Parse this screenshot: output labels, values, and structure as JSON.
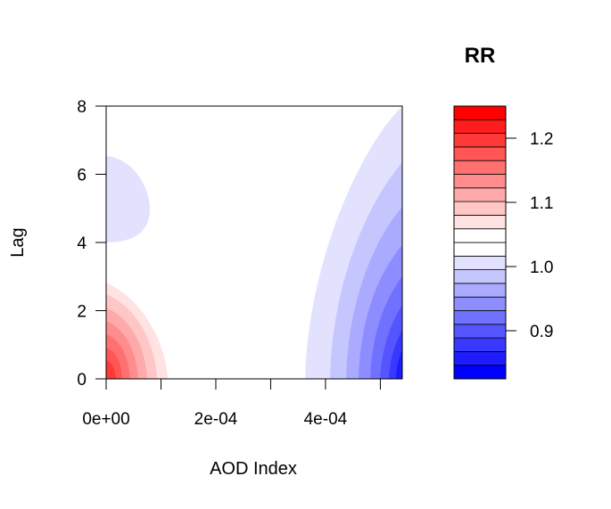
{
  "chart_data": {
    "type": "heatmap",
    "xlabel": "AOD Index",
    "ylabel": "Lag",
    "xlim": [
      0,
      0.00054
    ],
    "ylim": [
      0,
      8
    ],
    "x_ticks": [
      0,
      0.0001,
      0.0002,
      0.0003,
      0.0004,
      0.0005
    ],
    "x_tick_labels": [
      "0e+00",
      "",
      "2e-04",
      "",
      "4e-04",
      ""
    ],
    "y_ticks": [
      0,
      2,
      4,
      6,
      8
    ],
    "y_tick_labels": [
      "0",
      "2",
      "4",
      "6",
      "8"
    ],
    "legend": {
      "title": "RR",
      "levels": [
        0.825,
        0.85,
        0.875,
        0.9,
        0.925,
        0.95,
        0.975,
        1.0,
        1.025,
        1.05,
        1.075,
        1.1,
        1.125,
        1.15,
        1.175,
        1.2,
        1.225,
        1.25
      ],
      "tick_values": [
        0.9,
        1.0,
        1.1,
        1.2
      ],
      "tick_labels": [
        "0.9",
        "1.0",
        "1.1",
        "1.2"
      ],
      "colors": [
        "#0000ff",
        "#1c1cff",
        "#3838ff",
        "#5555ff",
        "#7171ff",
        "#8d8dff",
        "#aaaaff",
        "#c6c6ff",
        "#e2e2ff",
        "#ffffff",
        "#ffffff",
        "#ffe2e2",
        "#ffc6c6",
        "#ffaaaa",
        "#ff8d8d",
        "#ff7171",
        "#ff5555",
        "#ff3838",
        "#ff1c1c",
        "#ff0000"
      ]
    },
    "regions": [
      {
        "name": "red-lobe",
        "description_ref": "peak RR near x=0, lag 0",
        "peak_rr": 1.2,
        "extent_x": [
          0,
          0.00011
        ],
        "extent_lag": [
          0,
          2.9
        ]
      },
      {
        "name": "blue-lobe-upper-left",
        "peak_rr": 0.96,
        "extent_x": [
          0,
          8e-05
        ],
        "extent_lag": [
          4,
          6.5
        ]
      },
      {
        "name": "blue-gradient-right",
        "peak_rr": 0.83,
        "extent_x": [
          0.00036,
          0.00054
        ],
        "extent_lag": [
          0,
          8
        ]
      }
    ]
  }
}
